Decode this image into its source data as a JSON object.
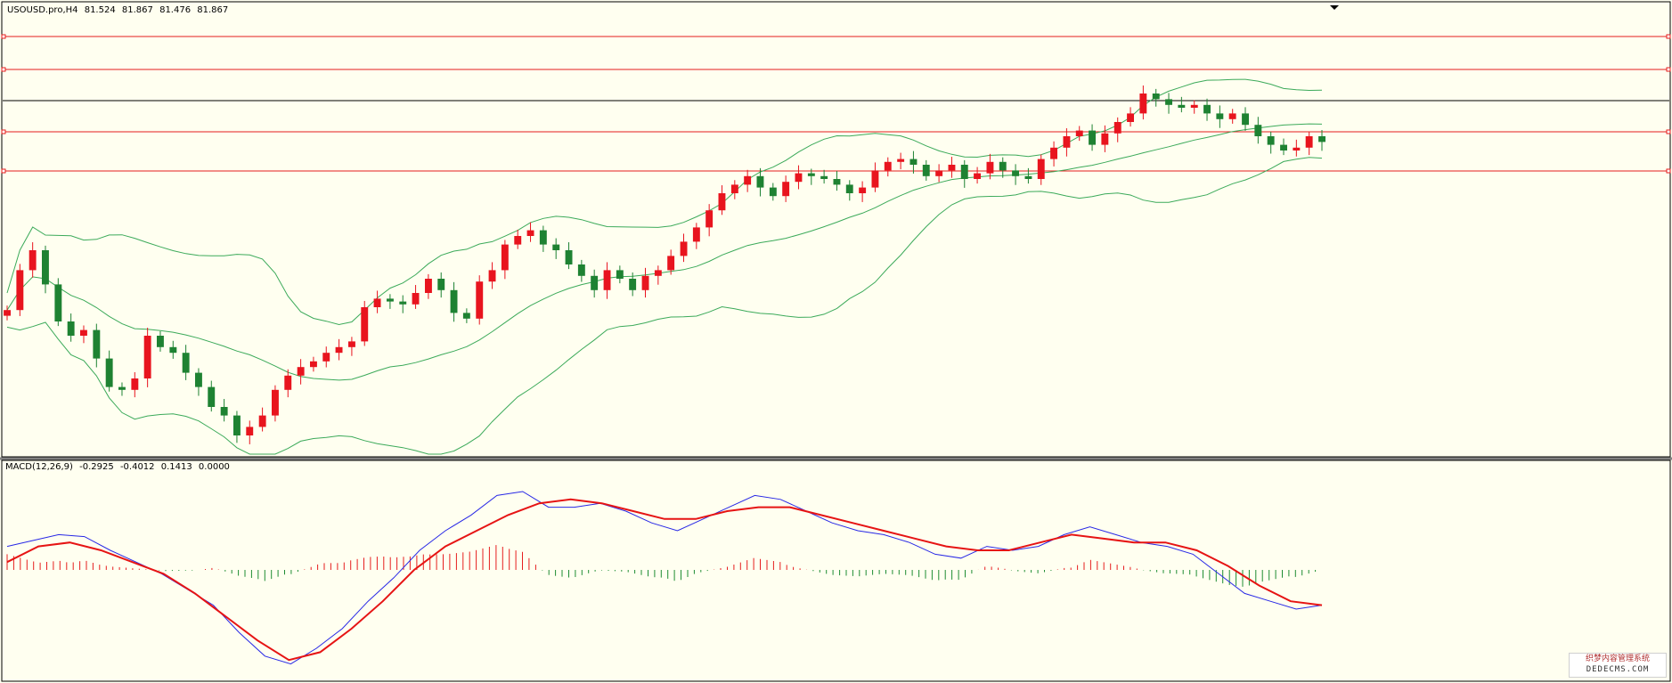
{
  "main_header": {
    "symbol": "USOUSD.pro,H4",
    "open": "81.524",
    "high": "81.867",
    "low": "81.476",
    "close": "81.867"
  },
  "macd_header": {
    "label": "MACD(12,26,9)",
    "v1": "-0.2925",
    "v2": "-0.4012",
    "v3": "0.1413",
    "v4": "0.0000"
  },
  "watermark": {
    "line1": "织梦内容管理系统",
    "line2": "DEDECMS.COM"
  },
  "colors": {
    "background": "#fffff0",
    "bull_candle": "#e8141e",
    "bear_candle": "#1e8232",
    "bollinger": "#3caa5a",
    "level_line": "#e61e1e",
    "price_line": "#000000",
    "macd_line": "#2828e6",
    "signal_line": "#e61414",
    "hist_positive": "#e61e1e",
    "hist_negative": "#1e8c32"
  },
  "chart_data": [
    {
      "type": "candlestick",
      "indicators": [
        "Bollinger Bands"
      ],
      "horizontal_levels": [
        "red",
        "red",
        "black",
        "red",
        "red"
      ],
      "series": [
        {
          "name": "close",
          "values": [
            89,
            103,
            110,
            98,
            85,
            80,
            82,
            72,
            62,
            61,
            65,
            80,
            76,
            74,
            67,
            62,
            55,
            52,
            45,
            48,
            52,
            61,
            66,
            69,
            71,
            74,
            76,
            78,
            90,
            93,
            92,
            91,
            95,
            100,
            96,
            88,
            86,
            99,
            103,
            112,
            115,
            117,
            112,
            110,
            105,
            101,
            96,
            103,
            100,
            96,
            101,
            103,
            108,
            113,
            118,
            124,
            130,
            133,
            136,
            132,
            129,
            134,
            137,
            136,
            135,
            133,
            130,
            132,
            138,
            141,
            142,
            140,
            136,
            138,
            140,
            135,
            137,
            141,
            138,
            136,
            135,
            142,
            146,
            150,
            152,
            147,
            151,
            155,
            158,
            165,
            163,
            161,
            160,
            161,
            158,
            156,
            158,
            154,
            150,
            147,
            145,
            146,
            150,
            148
          ]
        }
      ]
    },
    {
      "type": "macd",
      "series": [
        {
          "name": "MACD",
          "values": [
            0.6,
            0.75,
            0.9,
            0.85,
            0.5,
            0.2,
            -0.1,
            -0.5,
            -0.9,
            -1.6,
            -2.2,
            -2.4,
            -2.0,
            -1.5,
            -0.8,
            -0.2,
            0.5,
            1.0,
            1.4,
            1.9,
            2.0,
            1.6,
            1.6,
            1.7,
            1.5,
            1.2,
            1.0,
            1.3,
            1.6,
            1.9,
            1.8,
            1.5,
            1.2,
            1.0,
            0.9,
            0.7,
            0.4,
            0.3,
            0.6,
            0.5,
            0.6,
            0.9,
            1.1,
            0.9,
            0.7,
            0.6,
            0.4,
            -0.1,
            -0.6,
            -0.8,
            -1.0,
            -0.9
          ]
        },
        {
          "name": "Signal",
          "values": [
            0.2,
            0.6,
            0.7,
            0.5,
            0.2,
            -0.1,
            -0.6,
            -1.2,
            -1.8,
            -2.3,
            -2.1,
            -1.5,
            -0.8,
            0.0,
            0.6,
            1.0,
            1.4,
            1.7,
            1.8,
            1.7,
            1.5,
            1.3,
            1.3,
            1.5,
            1.6,
            1.6,
            1.4,
            1.2,
            1.0,
            0.8,
            0.6,
            0.5,
            0.5,
            0.7,
            0.9,
            0.8,
            0.7,
            0.7,
            0.5,
            0.1,
            -0.4,
            -0.8,
            -0.9
          ]
        }
      ]
    }
  ]
}
